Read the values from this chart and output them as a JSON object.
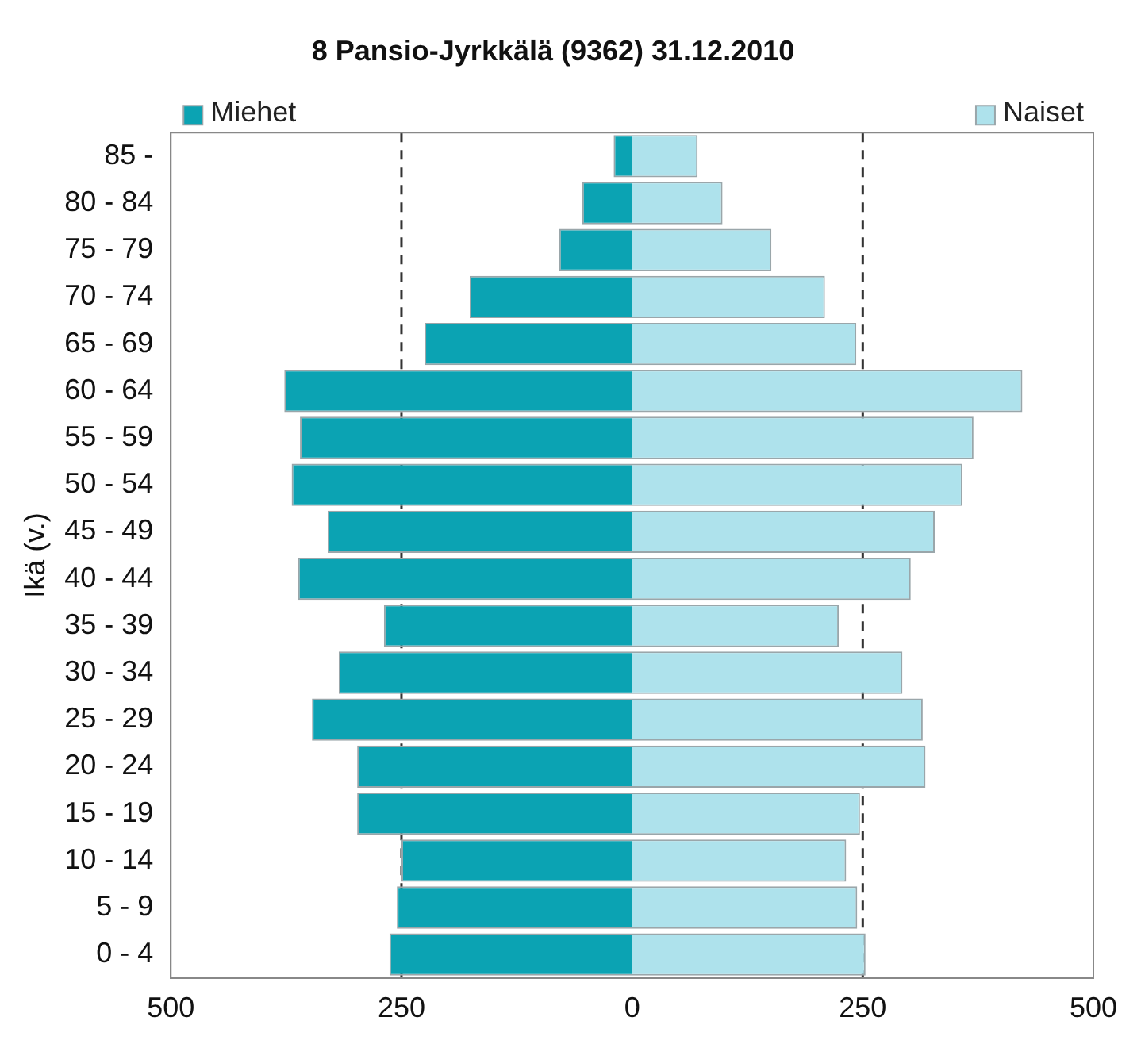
{
  "chart_data": {
    "type": "bar",
    "orientation": "horizontal",
    "stacked": true,
    "title": "8 Pansio-Jyrkkälä (9362) 31.12.2010",
    "ylabel": "Ikä (v.)",
    "categories": [
      "85 -",
      "80 - 84",
      "75 - 79",
      "70 - 74",
      "65 - 69",
      "60 - 64",
      "55 - 59",
      "50 - 54",
      "45 - 49",
      "40 - 44",
      "35 - 39",
      "30 - 34",
      "25 - 29",
      "20 - 24",
      "15 - 19",
      "10 - 14",
      "5 - 9",
      "0 - 4"
    ],
    "series": [
      {
        "name": "Miehet",
        "color": "#0ba3b3",
        "values": [
          -20,
          -54,
          -79,
          -176,
          -225,
          -377,
          -360,
          -369,
          -330,
          -362,
          -269,
          -318,
          -347,
          -298,
          -298,
          -250,
          -255,
          -263
        ]
      },
      {
        "name": "Naiset",
        "color": "#aee2ec",
        "values": [
          71,
          98,
          151,
          209,
          243,
          423,
          370,
          358,
          328,
          302,
          224,
          293,
          315,
          318,
          247,
          232,
          244,
          253
        ]
      }
    ],
    "xlim": [
      -500,
      500
    ],
    "xticks": [
      {
        "value": -500,
        "label": "500"
      },
      {
        "value": -250,
        "label": "250"
      },
      0,
      250,
      500
    ],
    "ref_lines": [
      {
        "axis": "x",
        "value": -250,
        "line_style": "dashed",
        "color": "#333333"
      },
      {
        "axis": "x",
        "value": 250,
        "line_style": "dashed",
        "color": "#333333"
      }
    ],
    "grid": false,
    "legend": "top"
  }
}
